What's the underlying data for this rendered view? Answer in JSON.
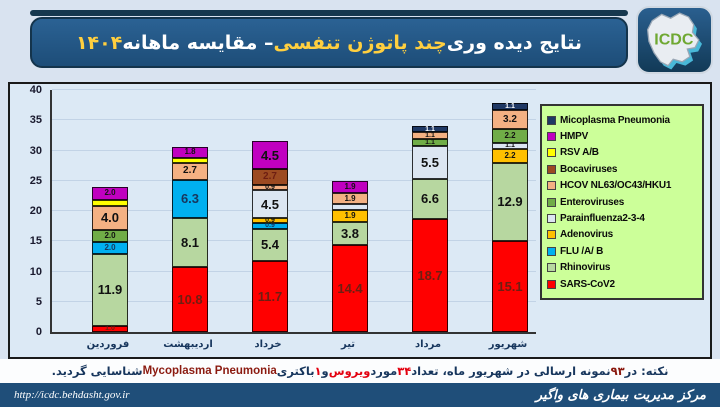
{
  "title": {
    "part1": "نتایج دیده وری ",
    "part2": "چند پاتوژن تنفسی ",
    "part3": "– مقایسه ماهانه ",
    "year": "۱۴۰۴"
  },
  "logo": {
    "text": "ICDC"
  },
  "colors": {
    "header_bar": "#1F4E79",
    "title_accent": "#FFCF3F",
    "page_bg": "#D9E3F0",
    "chart_bg": "#DCE9F5",
    "legend_bg": "#CCFF99",
    "footer_bg": "#1F4E79"
  },
  "chart_data": {
    "type": "bar",
    "stacked": true,
    "categories": [
      "فروردین",
      "اردیبهشت",
      "خرداد",
      "تیر",
      "مرداد",
      "شهریور"
    ],
    "ylim": [
      0,
      40
    ],
    "yticks": [
      0,
      5,
      10,
      15,
      20,
      25,
      30,
      35,
      40
    ],
    "grid": true,
    "legend_position": "right",
    "series": [
      {
        "name": "SARS-CoV2",
        "color": "#FF0000",
        "label_color": "#6e1e12",
        "values": [
          1.0,
          10.8,
          11.7,
          14.4,
          18.7,
          15.1
        ],
        "labels": [
          "1.0",
          "10.8",
          "11.7",
          "14.4",
          "18.7",
          "15.1"
        ]
      },
      {
        "name": "Rhinovirus",
        "color": "#B7D7A0",
        "label_color": "#111111",
        "values": [
          11.9,
          8.1,
          5.4,
          3.8,
          6.6,
          12.9
        ],
        "labels": [
          "11.9",
          "8.1",
          "5.4",
          "3.8",
          "6.6",
          "12.9"
        ]
      },
      {
        "name": "FLU /A/ B",
        "color": "#00B0F0",
        "label_color": "#17365D",
        "values": [
          2.0,
          6.3,
          0.9,
          0,
          0,
          0
        ],
        "labels": [
          "2.0",
          "6.3",
          "0.9",
          "",
          "",
          ""
        ]
      },
      {
        "name": "Adenovirus",
        "color": "#FFC000",
        "label_color": "#111111",
        "values": [
          0,
          0,
          0.9,
          1.9,
          0,
          2.2
        ],
        "labels": [
          "",
          "",
          "0.9",
          "1.9",
          "",
          "2.2"
        ]
      },
      {
        "name": "Parainfluenza2-3-4",
        "color": "#DCE6F2",
        "label_color": "#111111",
        "values": [
          0,
          0,
          4.5,
          1.0,
          5.5,
          1.1
        ],
        "labels": [
          "",
          "",
          "4.5",
          "",
          "5.5",
          "1.1"
        ]
      },
      {
        "name": "Enteroviruses",
        "color": "#70AD47",
        "label_color": "#111111",
        "values": [
          2.0,
          0,
          0,
          0,
          1.1,
          2.2
        ],
        "labels": [
          "2.0",
          "",
          "",
          "",
          "1.1",
          "2.2"
        ]
      },
      {
        "name": "HCOV NL63/OC43/HKU1",
        "color": "#F4B183",
        "label_color": "#111111",
        "values": [
          4.0,
          2.7,
          0.9,
          1.9,
          1.1,
          3.2
        ],
        "labels": [
          "4.0",
          "2.7",
          "0.9",
          "1.9",
          "1.1",
          "3.2"
        ]
      },
      {
        "name": "Bocaviruses",
        "color": "#9C4A21",
        "label_color": "#6e1e12",
        "values": [
          0,
          0,
          2.7,
          0,
          0,
          0
        ],
        "labels": [
          "",
          "",
          "2.7",
          "",
          "",
          ""
        ]
      },
      {
        "name": "RSV A/B",
        "color": "#FFFF00",
        "label_color": "#111111",
        "values": [
          1.0,
          0.9,
          0,
          0,
          0,
          0
        ],
        "labels": [
          "",
          "",
          "",
          "",
          "",
          ""
        ]
      },
      {
        "name": "HMPV",
        "color": "#C000C0",
        "label_color": "#111111",
        "values": [
          2.0,
          1.8,
          4.5,
          1.9,
          0,
          0
        ],
        "labels": [
          "2.0",
          "1.8",
          "4.5",
          "1.9",
          "",
          ""
        ]
      },
      {
        "name": "Micoplasma Pneumonia",
        "color": "#1F3864",
        "label_color": "#ffffff",
        "values": [
          0,
          0,
          0,
          0,
          1.1,
          1.1
        ],
        "labels": [
          "",
          "",
          "",
          "",
          "1.1",
          "1.1"
        ]
      }
    ]
  },
  "legend": {
    "items": [
      {
        "label": "Micoplasma Pneumonia",
        "color": "#1F3864"
      },
      {
        "label": "HMPV",
        "color": "#C000C0"
      },
      {
        "label": "RSV A/B",
        "color": "#FFFF00"
      },
      {
        "label": "Bocaviruses",
        "color": "#9C4A21"
      },
      {
        "label": "HCOV NL63/OC43/HKU1",
        "color": "#F4B183"
      },
      {
        "label": "Enteroviruses",
        "color": "#70AD47"
      },
      {
        "label": "Parainfluenza2-3-4",
        "color": "#DCE6F2"
      },
      {
        "label": "Adenovirus",
        "color": "#FFC000"
      },
      {
        "label": "FLU /A/ B",
        "color": "#00B0F0"
      },
      {
        "label": "Rhinovirus",
        "color": "#B7D7A0"
      },
      {
        "label": "SARS-CoV2",
        "color": "#FF0000"
      }
    ]
  },
  "note": {
    "prefix": "نکته: در ",
    "n_samples": "۹۳",
    "mid1": " نمونه ارسالی در شهریور ماه، تعداد ",
    "n_virus": "۳۴",
    "mid2": " مورد ",
    "virus_word": "ویروس",
    "mid3": " و ",
    "n_bacteria": "۱",
    "mid4": " باکتری ",
    "bacteria_name": "Mycoplasma Pneumonia",
    "suffix": " شناسایی گردید."
  },
  "footer": {
    "url": "http://icdc.behdasht.gov.ir",
    "org": "مرکز مدیریت بیماری های واگیر"
  }
}
